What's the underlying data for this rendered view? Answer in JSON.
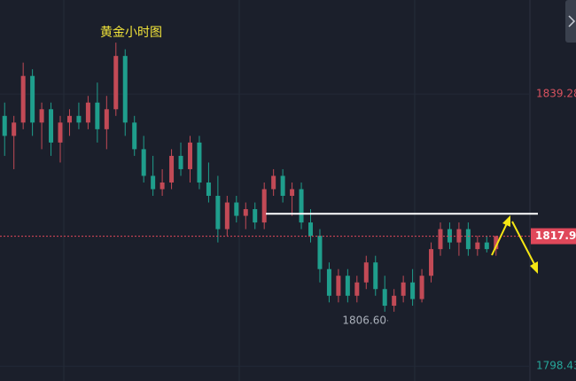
{
  "chart_data": {
    "type": "candlestick",
    "title": "黄金小时图",
    "ylim": [
      1796.2,
      1853.4
    ],
    "yticks": [
      1839.28,
      1798.43
    ],
    "ytick_colors": [
      "#d9525f",
      "#26a69a"
    ],
    "up_color": "#c24a56",
    "down_color": "#1f9e8c",
    "current_price": 1817.94,
    "current_color": "#e0485a",
    "low_annotation": {
      "value": 1806.6,
      "label": "1806.60"
    },
    "resistance_line": 1821.3,
    "candles": [
      [
        1836,
        1838,
        1830,
        1833
      ],
      [
        1833,
        1836,
        1828,
        1835
      ],
      [
        1835,
        1844,
        1834,
        1842
      ],
      [
        1842,
        1843,
        1833,
        1835
      ],
      [
        1835,
        1838,
        1831,
        1837
      ],
      [
        1837,
        1838,
        1830,
        1832
      ],
      [
        1832,
        1836,
        1829,
        1835
      ],
      [
        1835,
        1837,
        1833,
        1836
      ],
      [
        1836,
        1838,
        1834,
        1835
      ],
      [
        1835,
        1839,
        1834,
        1838
      ],
      [
        1838,
        1841,
        1832,
        1834
      ],
      [
        1834,
        1839,
        1831,
        1837
      ],
      [
        1837,
        1847,
        1836,
        1845
      ],
      [
        1845,
        1846,
        1833,
        1835
      ],
      [
        1835,
        1836,
        1830,
        1831
      ],
      [
        1831,
        1833,
        1826,
        1827
      ],
      [
        1827,
        1830,
        1824,
        1825
      ],
      [
        1825,
        1828,
        1824,
        1826
      ],
      [
        1826,
        1831,
        1825,
        1830
      ],
      [
        1830,
        1832,
        1827,
        1828
      ],
      [
        1828,
        1833,
        1826,
        1832
      ],
      [
        1832,
        1833,
        1825,
        1826
      ],
      [
        1826,
        1829,
        1823,
        1824
      ],
      [
        1824,
        1827,
        1817,
        1819
      ],
      [
        1819,
        1824,
        1818,
        1823
      ],
      [
        1823,
        1824,
        1820,
        1821
      ],
      [
        1821,
        1823,
        1819,
        1822
      ],
      [
        1822,
        1823,
        1819,
        1820
      ],
      [
        1820,
        1826,
        1819,
        1825
      ],
      [
        1825,
        1828,
        1824,
        1827
      ],
      [
        1827,
        1828,
        1823,
        1824
      ],
      [
        1824,
        1826,
        1821,
        1825
      ],
      [
        1825,
        1826,
        1819,
        1820
      ],
      [
        1820,
        1822,
        1817,
        1818
      ],
      [
        1818,
        1819,
        1811,
        1813
      ],
      [
        1813,
        1814,
        1808,
        1809
      ],
      [
        1809,
        1813,
        1808,
        1812
      ],
      [
        1812,
        1813,
        1808,
        1809
      ],
      [
        1809,
        1812,
        1808,
        1811
      ],
      [
        1811,
        1815,
        1810,
        1814
      ],
      [
        1814,
        1815,
        1809,
        1810
      ],
      [
        1810,
        1812,
        1806.6,
        1807.5
      ],
      [
        1807.5,
        1810,
        1806.6,
        1809
      ],
      [
        1809,
        1812,
        1808,
        1811
      ],
      [
        1811,
        1813,
        1807.5,
        1808.5
      ],
      [
        1808.5,
        1813,
        1808,
        1812
      ],
      [
        1812,
        1817,
        1811,
        1816
      ],
      [
        1816,
        1820,
        1815,
        1819
      ],
      [
        1819,
        1820,
        1816,
        1817
      ],
      [
        1817,
        1820,
        1815,
        1819
      ],
      [
        1819,
        1820,
        1815,
        1816
      ],
      [
        1816,
        1818,
        1815,
        1817
      ],
      [
        1817,
        1818,
        1815.5,
        1816
      ],
      [
        1816,
        1818,
        1815,
        1817.94
      ]
    ]
  }
}
